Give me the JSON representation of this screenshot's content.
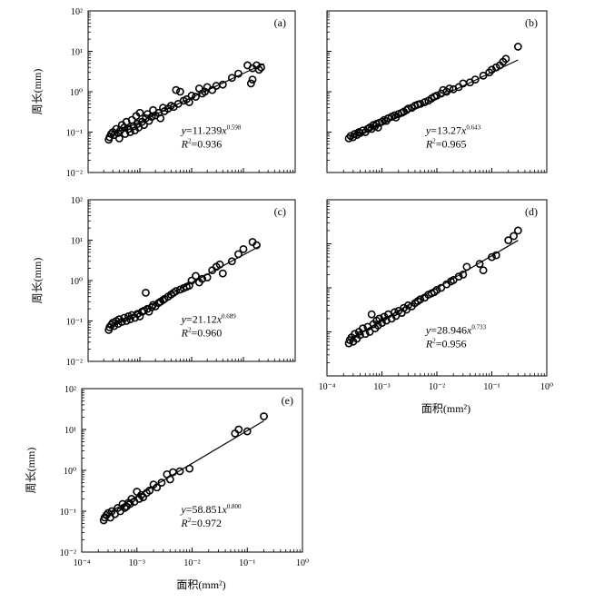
{
  "figure": {
    "ylabel": "周长(mm)",
    "xlabel": "面积(mm²)"
  },
  "chart_data": [
    {
      "id": "a",
      "panel_label": "(a)",
      "type": "scatter",
      "xscale": "log",
      "yscale": "log",
      "xlim": [
        0.0001,
        1
      ],
      "ylim": [
        0.01,
        100
      ],
      "x_ticks": [],
      "y_ticks": [
        "10⁻²",
        "10⁻¹",
        "10⁰",
        "10¹",
        "10²"
      ],
      "ylabel": "周长(mm)",
      "xlabel": "",
      "equation": {
        "coef": "11.239",
        "exp": "0.598",
        "r2": "0.936"
      },
      "fit": {
        "a": 11.239,
        "b": 0.598,
        "x_range": [
          0.00025,
          0.25
        ]
      },
      "points": [
        [
          0.00025,
          0.065
        ],
        [
          0.00026,
          0.075
        ],
        [
          0.00028,
          0.09
        ],
        [
          0.0003,
          0.1
        ],
        [
          0.00032,
          0.085
        ],
        [
          0.00035,
          0.12
        ],
        [
          0.00038,
          0.095
        ],
        [
          0.0004,
          0.07
        ],
        [
          0.00042,
          0.11
        ],
        [
          0.00045,
          0.15
        ],
        [
          0.0005,
          0.13
        ],
        [
          0.00052,
          0.09
        ],
        [
          0.00055,
          0.18
        ],
        [
          0.0006,
          0.12
        ],
        [
          0.00065,
          0.1
        ],
        [
          0.0007,
          0.2
        ],
        [
          0.00075,
          0.14
        ],
        [
          0.0008,
          0.11
        ],
        [
          0.00085,
          0.25
        ],
        [
          0.0009,
          0.16
        ],
        [
          0.00095,
          0.13
        ],
        [
          0.001,
          0.3
        ],
        [
          0.0011,
          0.18
        ],
        [
          0.0012,
          0.15
        ],
        [
          0.0013,
          0.22
        ],
        [
          0.0014,
          0.28
        ],
        [
          0.0015,
          0.19
        ],
        [
          0.0017,
          0.24
        ],
        [
          0.0018,
          0.35
        ],
        [
          0.002,
          0.26
        ],
        [
          0.0023,
          0.3
        ],
        [
          0.0025,
          0.22
        ],
        [
          0.0028,
          0.4
        ],
        [
          0.003,
          0.33
        ],
        [
          0.0035,
          0.38
        ],
        [
          0.004,
          0.45
        ],
        [
          0.0045,
          0.42
        ],
        [
          0.005,
          1.1
        ],
        [
          0.0055,
          0.5
        ],
        [
          0.006,
          1.0
        ],
        [
          0.007,
          0.6
        ],
        [
          0.008,
          0.65
        ],
        [
          0.009,
          0.55
        ],
        [
          0.01,
          0.8
        ],
        [
          0.012,
          0.75
        ],
        [
          0.014,
          1.2
        ],
        [
          0.016,
          0.9
        ],
        [
          0.018,
          1.0
        ],
        [
          0.02,
          1.3
        ],
        [
          0.025,
          1.1
        ],
        [
          0.03,
          1.4
        ],
        [
          0.04,
          1.5
        ],
        [
          0.06,
          2.2
        ],
        [
          0.08,
          2.8
        ],
        [
          0.12,
          4.5
        ],
        [
          0.15,
          3.8
        ],
        [
          0.18,
          4.5
        ],
        [
          0.2,
          3.5
        ],
        [
          0.15,
          2.0
        ],
        [
          0.14,
          1.6
        ],
        [
          0.22,
          4.0
        ]
      ]
    },
    {
      "id": "b",
      "panel_label": "(b)",
      "type": "scatter",
      "xscale": "log",
      "yscale": "log",
      "xlim": [
        0.0001,
        1
      ],
      "ylim": [
        0.01,
        100
      ],
      "x_ticks": [],
      "y_ticks": [],
      "ylabel": "",
      "xlabel": "",
      "equation": {
        "coef": "13.27",
        "exp": "0.643",
        "r2": "0.965"
      },
      "fit": {
        "a": 13.27,
        "b": 0.643,
        "x_range": [
          0.00025,
          0.3
        ]
      },
      "points": [
        [
          0.00025,
          0.07
        ],
        [
          0.00027,
          0.08
        ],
        [
          0.0003,
          0.075
        ],
        [
          0.00032,
          0.09
        ],
        [
          0.00035,
          0.085
        ],
        [
          0.00038,
          0.1
        ],
        [
          0.0004,
          0.095
        ],
        [
          0.00045,
          0.11
        ],
        [
          0.0005,
          0.1
        ],
        [
          0.00055,
          0.12
        ],
        [
          0.0006,
          0.13
        ],
        [
          0.00065,
          0.12
        ],
        [
          0.0007,
          0.15
        ],
        [
          0.00075,
          0.14
        ],
        [
          0.0008,
          0.16
        ],
        [
          0.00085,
          0.13
        ],
        [
          0.0009,
          0.17
        ],
        [
          0.001,
          0.18
        ],
        [
          0.0011,
          0.2
        ],
        [
          0.0012,
          0.19
        ],
        [
          0.0013,
          0.22
        ],
        [
          0.0015,
          0.24
        ],
        [
          0.0017,
          0.26
        ],
        [
          0.0018,
          0.23
        ],
        [
          0.002,
          0.28
        ],
        [
          0.0023,
          0.3
        ],
        [
          0.0025,
          0.32
        ],
        [
          0.0028,
          0.35
        ],
        [
          0.003,
          0.38
        ],
        [
          0.0035,
          0.4
        ],
        [
          0.004,
          0.45
        ],
        [
          0.0045,
          0.48
        ],
        [
          0.005,
          0.5
        ],
        [
          0.006,
          0.55
        ],
        [
          0.007,
          0.6
        ],
        [
          0.008,
          0.68
        ],
        [
          0.009,
          0.75
        ],
        [
          0.01,
          0.8
        ],
        [
          0.012,
          0.9
        ],
        [
          0.013,
          1.1
        ],
        [
          0.015,
          1.0
        ],
        [
          0.017,
          1.2
        ],
        [
          0.02,
          1.15
        ],
        [
          0.025,
          1.3
        ],
        [
          0.03,
          1.6
        ],
        [
          0.04,
          1.7
        ],
        [
          0.05,
          2.0
        ],
        [
          0.07,
          2.5
        ],
        [
          0.09,
          3.0
        ],
        [
          0.1,
          3.5
        ],
        [
          0.12,
          4.0
        ],
        [
          0.14,
          4.5
        ],
        [
          0.16,
          5.5
        ],
        [
          0.18,
          6.5
        ],
        [
          0.3,
          13.0
        ]
      ]
    },
    {
      "id": "c",
      "panel_label": "(c)",
      "type": "scatter",
      "xscale": "log",
      "yscale": "log",
      "xlim": [
        0.0001,
        1
      ],
      "ylim": [
        0.01,
        100
      ],
      "x_ticks": [],
      "y_ticks": [
        "10⁻²",
        "10⁻¹",
        "10⁰",
        "10¹",
        "10²"
      ],
      "ylabel": "周长(mm)",
      "xlabel": "",
      "equation": {
        "coef": "21.12",
        "exp": "0.689",
        "r2": "0.960"
      },
      "fit": {
        "a": 21.12,
        "b": 0.689,
        "x_range": [
          0.00025,
          0.2
        ]
      },
      "points": [
        [
          0.00025,
          0.06
        ],
        [
          0.00026,
          0.07
        ],
        [
          0.00028,
          0.08
        ],
        [
          0.0003,
          0.09
        ],
        [
          0.00032,
          0.075
        ],
        [
          0.00035,
          0.1
        ],
        [
          0.00038,
          0.085
        ],
        [
          0.0004,
          0.11
        ],
        [
          0.00045,
          0.095
        ],
        [
          0.0005,
          0.12
        ],
        [
          0.00055,
          0.1
        ],
        [
          0.0006,
          0.13
        ],
        [
          0.00065,
          0.11
        ],
        [
          0.0007,
          0.14
        ],
        [
          0.0008,
          0.12
        ],
        [
          0.0009,
          0.15
        ],
        [
          0.001,
          0.13
        ],
        [
          0.0011,
          0.17
        ],
        [
          0.0012,
          0.18
        ],
        [
          0.0013,
          0.5
        ],
        [
          0.0014,
          0.2
        ],
        [
          0.0015,
          0.17
        ],
        [
          0.0017,
          0.22
        ],
        [
          0.0018,
          0.25
        ],
        [
          0.002,
          0.23
        ],
        [
          0.0023,
          0.28
        ],
        [
          0.0025,
          0.3
        ],
        [
          0.0028,
          0.33
        ],
        [
          0.003,
          0.35
        ],
        [
          0.0035,
          0.4
        ],
        [
          0.004,
          0.45
        ],
        [
          0.0045,
          0.5
        ],
        [
          0.005,
          0.55
        ],
        [
          0.006,
          0.6
        ],
        [
          0.007,
          0.65
        ],
        [
          0.008,
          0.7
        ],
        [
          0.009,
          0.75
        ],
        [
          0.01,
          1.0
        ],
        [
          0.012,
          1.3
        ],
        [
          0.014,
          0.9
        ],
        [
          0.016,
          1.1
        ],
        [
          0.02,
          1.2
        ],
        [
          0.025,
          1.8
        ],
        [
          0.03,
          2.2
        ],
        [
          0.035,
          2.5
        ],
        [
          0.04,
          1.5
        ],
        [
          0.06,
          3.0
        ],
        [
          0.08,
          4.5
        ],
        [
          0.1,
          6.0
        ],
        [
          0.15,
          9.0
        ],
        [
          0.18,
          7.5
        ]
      ]
    },
    {
      "id": "d",
      "panel_label": "(d)",
      "type": "scatter",
      "xscale": "log",
      "yscale": "log",
      "xlim": [
        0.0001,
        1
      ],
      "ylim": [
        0.01,
        100
      ],
      "x_ticks": [
        "10⁻⁴",
        "10⁻³",
        "10⁻²",
        "10⁻¹",
        "10⁰"
      ],
      "y_ticks": [],
      "ylabel": "",
      "xlabel": "面积(mm²)",
      "equation": {
        "coef": "28.946",
        "exp": "0.733",
        "r2": "0.956"
      },
      "fit": {
        "a": 28.946,
        "b": 0.733,
        "x_range": [
          0.00025,
          0.3
        ]
      },
      "points": [
        [
          0.00025,
          0.055
        ],
        [
          0.00026,
          0.065
        ],
        [
          0.00028,
          0.075
        ],
        [
          0.0003,
          0.06
        ],
        [
          0.00032,
          0.09
        ],
        [
          0.00035,
          0.07
        ],
        [
          0.00038,
          0.1
        ],
        [
          0.0004,
          0.085
        ],
        [
          0.00045,
          0.12
        ],
        [
          0.0005,
          0.09
        ],
        [
          0.00055,
          0.13
        ],
        [
          0.0006,
          0.1
        ],
        [
          0.00065,
          0.25
        ],
        [
          0.0007,
          0.15
        ],
        [
          0.00075,
          0.12
        ],
        [
          0.0008,
          0.18
        ],
        [
          0.00085,
          0.14
        ],
        [
          0.0009,
          0.2
        ],
        [
          0.001,
          0.16
        ],
        [
          0.0011,
          0.22
        ],
        [
          0.0012,
          0.18
        ],
        [
          0.0013,
          0.25
        ],
        [
          0.0015,
          0.2
        ],
        [
          0.0017,
          0.28
        ],
        [
          0.0018,
          0.23
        ],
        [
          0.002,
          0.3
        ],
        [
          0.0023,
          0.27
        ],
        [
          0.0025,
          0.35
        ],
        [
          0.0028,
          0.32
        ],
        [
          0.003,
          0.4
        ],
        [
          0.0035,
          0.38
        ],
        [
          0.004,
          0.45
        ],
        [
          0.0045,
          0.5
        ],
        [
          0.005,
          0.55
        ],
        [
          0.006,
          0.6
        ],
        [
          0.007,
          0.7
        ],
        [
          0.008,
          0.75
        ],
        [
          0.009,
          0.8
        ],
        [
          0.01,
          0.9
        ],
        [
          0.012,
          1.0
        ],
        [
          0.015,
          1.2
        ],
        [
          0.018,
          1.4
        ],
        [
          0.02,
          1.5
        ],
        [
          0.025,
          1.8
        ],
        [
          0.03,
          2.0
        ],
        [
          0.035,
          3.0
        ],
        [
          0.06,
          3.5
        ],
        [
          0.07,
          2.5
        ],
        [
          0.1,
          5.0
        ],
        [
          0.12,
          5.5
        ],
        [
          0.2,
          12.0
        ],
        [
          0.25,
          15.0
        ],
        [
          0.3,
          20.0
        ]
      ]
    },
    {
      "id": "e",
      "panel_label": "(e)",
      "type": "scatter",
      "xscale": "log",
      "yscale": "log",
      "xlim": [
        0.0001,
        1
      ],
      "ylim": [
        0.01,
        100
      ],
      "x_ticks": [
        "10⁻⁴",
        "10⁻³",
        "10⁻²",
        "10⁻¹",
        "10⁰"
      ],
      "y_ticks": [
        "10⁻²",
        "10⁻¹",
        "10⁰",
        "10¹",
        "10²"
      ],
      "ylabel": "周长(mm)",
      "xlabel": "面积(mm²)",
      "equation": {
        "coef": "58.851",
        "exp": "0.800",
        "r2": "0.972"
      },
      "fit": {
        "a": 58.851,
        "b": 0.8,
        "x_range": [
          0.00025,
          0.2
        ]
      },
      "points": [
        [
          0.00025,
          0.06
        ],
        [
          0.00026,
          0.07
        ],
        [
          0.00028,
          0.08
        ],
        [
          0.0003,
          0.09
        ],
        [
          0.00033,
          0.07
        ],
        [
          0.00035,
          0.1
        ],
        [
          0.0004,
          0.085
        ],
        [
          0.00045,
          0.12
        ],
        [
          0.0005,
          0.1
        ],
        [
          0.00055,
          0.15
        ],
        [
          0.0006,
          0.12
        ],
        [
          0.00065,
          0.13
        ],
        [
          0.0007,
          0.16
        ],
        [
          0.00075,
          0.15
        ],
        [
          0.0008,
          0.2
        ],
        [
          0.0009,
          0.17
        ],
        [
          0.001,
          0.3
        ],
        [
          0.0011,
          0.2
        ],
        [
          0.0012,
          0.25
        ],
        [
          0.0013,
          0.22
        ],
        [
          0.0015,
          0.28
        ],
        [
          0.0017,
          0.32
        ],
        [
          0.002,
          0.45
        ],
        [
          0.0023,
          0.38
        ],
        [
          0.0028,
          0.5
        ],
        [
          0.0035,
          0.8
        ],
        [
          0.004,
          0.6
        ],
        [
          0.0045,
          0.9
        ],
        [
          0.006,
          0.95
        ],
        [
          0.009,
          1.1
        ],
        [
          0.06,
          8.0
        ],
        [
          0.07,
          10.0
        ],
        [
          0.1,
          9.0
        ],
        [
          0.2,
          21.0
        ]
      ]
    }
  ]
}
